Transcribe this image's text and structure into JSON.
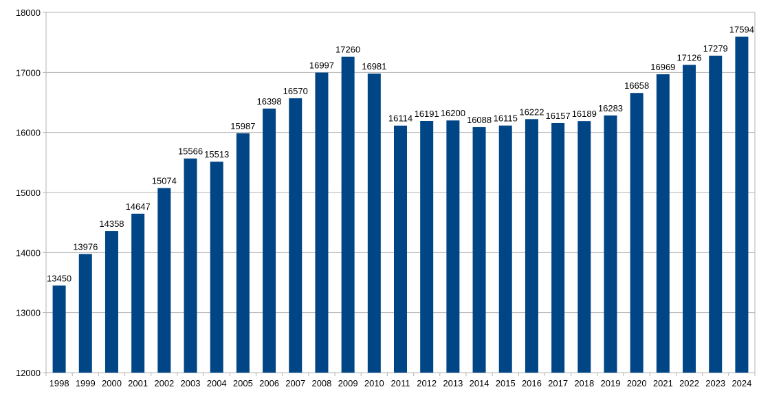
{
  "chart_data": {
    "type": "bar",
    "title": "",
    "xlabel": "",
    "ylabel": "",
    "ylim": [
      12000,
      18000
    ],
    "yticks": [
      12000,
      13000,
      14000,
      15000,
      16000,
      17000,
      18000
    ],
    "grid": true,
    "legend": "none",
    "bar_color": "#004586",
    "categories": [
      "1998",
      "1999",
      "2000",
      "2001",
      "2002",
      "2003",
      "2004",
      "2005",
      "2006",
      "2007",
      "2008",
      "2009",
      "2010",
      "2011",
      "2012",
      "2013",
      "2014",
      "2015",
      "2016",
      "2017",
      "2018",
      "2019",
      "2020",
      "2021",
      "2022",
      "2023",
      "2024"
    ],
    "values": [
      13450,
      13976,
      14358,
      14647,
      15074,
      15566,
      15513,
      15987,
      16398,
      16570,
      16997,
      17260,
      16981,
      16114,
      16191,
      16200,
      16088,
      16115,
      16222,
      16157,
      16189,
      16283,
      16658,
      16969,
      17126,
      17279,
      17594
    ]
  }
}
